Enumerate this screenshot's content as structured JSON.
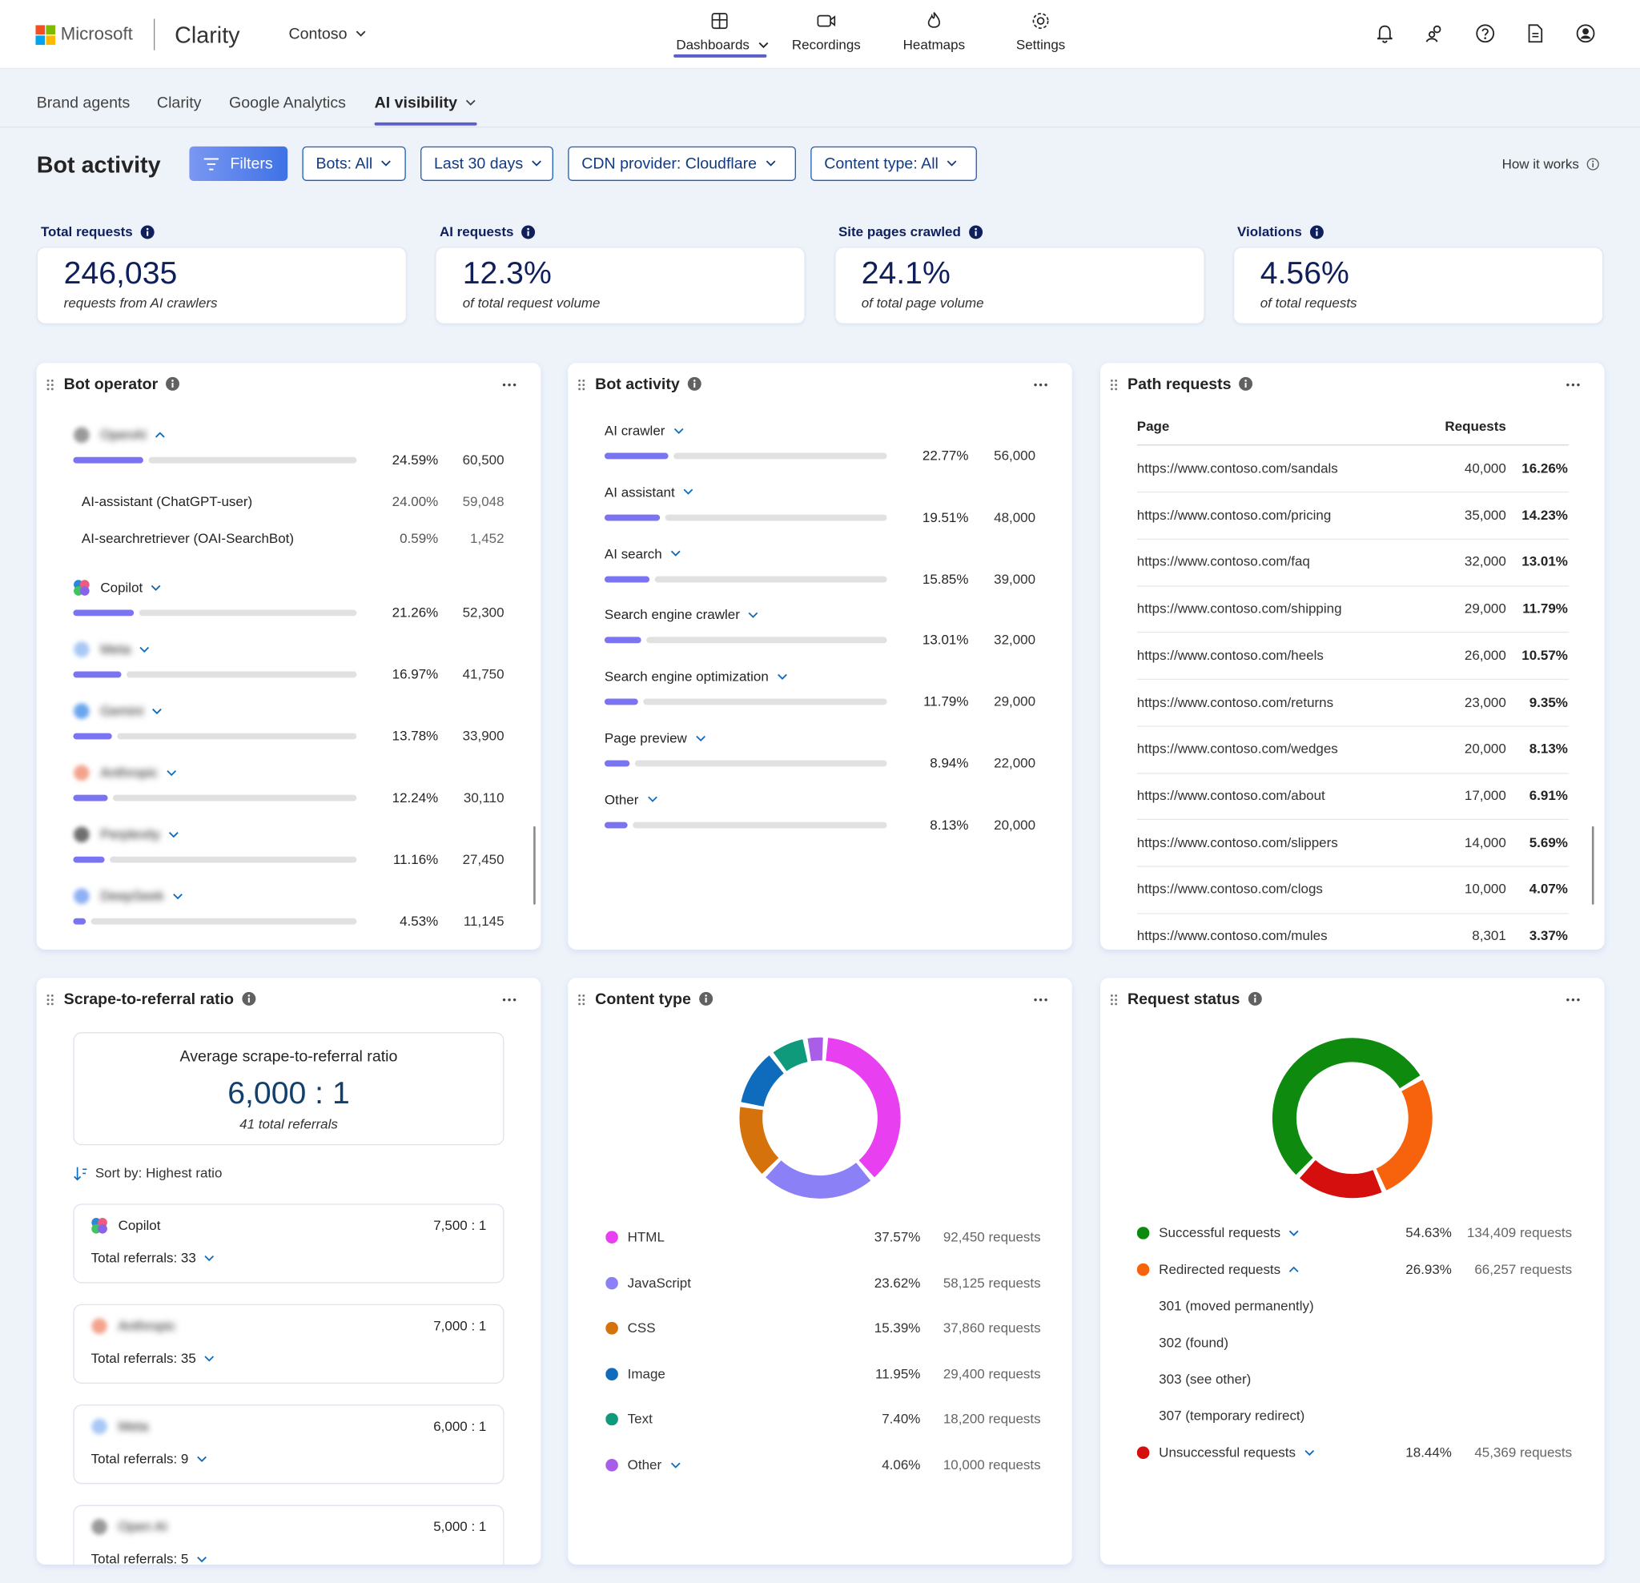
{
  "header": {
    "brand": "Microsoft",
    "product": "Clarity",
    "project": "Contoso",
    "nav": [
      "Dashboards",
      "Recordings",
      "Heatmaps",
      "Settings"
    ]
  },
  "tabs": [
    "Brand agents",
    "Clarity",
    "Google Analytics",
    "AI visibility"
  ],
  "toolbar": {
    "title": "Bot activity",
    "filters": [
      "Filters",
      "Bots: All",
      "Last 30 days",
      "CDN provider: Cloudflare",
      "Content type: All"
    ],
    "help": "How it works"
  },
  "kpis": [
    {
      "label": "Total requests",
      "value": "246,035",
      "caption": "requests from AI crawlers"
    },
    {
      "label": "AI requests",
      "value": "12.3%",
      "caption": "of total request volume"
    },
    {
      "label": "Site pages crawled",
      "value": "24.1%",
      "caption": "of total page volume"
    },
    {
      "label": "Violations",
      "value": "4.56%",
      "caption": "of total requests"
    }
  ],
  "bot_operator": {
    "title": "Bot operator",
    "rows": [
      {
        "name": "OpenAI",
        "percent": "24.59%",
        "count": "60,500",
        "children": [
          {
            "name": "AI-assistant (ChatGPT-user)",
            "percent": "24.00%",
            "count": "59,048"
          },
          {
            "name": "AI-searchretriever (OAI-SearchBot)",
            "percent": "0.59%",
            "count": "1,452"
          }
        ]
      },
      {
        "name": "Copilot",
        "percent": "21.26%",
        "count": "52,300"
      },
      {
        "name": "Meta",
        "percent": "16.97%",
        "count": "41,750"
      },
      {
        "name": "Gemini",
        "percent": "13.78%",
        "count": "33,900"
      },
      {
        "name": "Anthropic",
        "percent": "12.24%",
        "count": "30,110"
      },
      {
        "name": "Perplexity",
        "percent": "11.16%",
        "count": "27,450"
      },
      {
        "name": "DeepSeek",
        "percent": "4.53%",
        "count": "11,145"
      }
    ]
  },
  "bot_activity": {
    "title": "Bot activity",
    "rows": [
      {
        "name": "AI crawler",
        "percent": "22.77%",
        "count": "56,000"
      },
      {
        "name": "AI assistant",
        "percent": "19.51%",
        "count": "48,000"
      },
      {
        "name": "AI search",
        "percent": "15.85%",
        "count": "39,000"
      },
      {
        "name": "Search engine crawler",
        "percent": "13.01%",
        "count": "32,000"
      },
      {
        "name": "Search engine optimization",
        "percent": "11.79%",
        "count": "29,000"
      },
      {
        "name": "Page preview",
        "percent": "8.94%",
        "count": "22,000"
      },
      {
        "name": "Other",
        "percent": "8.13%",
        "count": "20,000"
      }
    ]
  },
  "path_requests": {
    "title": "Path requests",
    "columns": [
      "Page",
      "Requests"
    ],
    "rows": [
      [
        "https://www.contoso.com/sandals",
        "40,000",
        "16.26%"
      ],
      [
        "https://www.contoso.com/pricing",
        "35,000",
        "14.23%"
      ],
      [
        "https://www.contoso.com/faq",
        "32,000",
        "13.01%"
      ],
      [
        "https://www.contoso.com/shipping",
        "29,000",
        "11.79%"
      ],
      [
        "https://www.contoso.com/heels",
        "26,000",
        "10.57%"
      ],
      [
        "https://www.contoso.com/returns",
        "23,000",
        "9.35%"
      ],
      [
        "https://www.contoso.com/wedges",
        "20,000",
        "8.13%"
      ],
      [
        "https://www.contoso.com/about",
        "17,000",
        "6.91%"
      ],
      [
        "https://www.contoso.com/slippers",
        "14,000",
        "5.69%"
      ],
      [
        "https://www.contoso.com/clogs",
        "10,000",
        "4.07%"
      ],
      [
        "https://www.contoso.com/mules",
        "8,301",
        "3.37%"
      ]
    ]
  },
  "scrape_ratio": {
    "title": "Scrape-to-referral ratio",
    "summary_title": "Average scrape-to-referral ratio",
    "summary_value": "6,000 : 1",
    "summary_caption": "41 total referrals",
    "sort": "Sort by: Highest ratio",
    "rows": [
      {
        "name": "Copilot",
        "ratio": "7,500 : 1",
        "referrals": "Total referrals: 33"
      },
      {
        "name": "Anthropic",
        "ratio": "7,000 : 1",
        "referrals": "Total referrals: 35"
      },
      {
        "name": "Meta",
        "ratio": "6,000 : 1",
        "referrals": "Total referrals: 9"
      },
      {
        "name": "Open AI",
        "ratio": "5,000 : 1",
        "referrals": "Total referrals: 5"
      }
    ]
  },
  "content_type": {
    "title": "Content type",
    "rows": [
      {
        "name": "HTML",
        "color": "#e83ff0",
        "percent": "37.57%",
        "requests": "92,450 requests"
      },
      {
        "name": "JavaScript",
        "color": "#8b80f5",
        "percent": "23.62%",
        "requests": "58,125 requests"
      },
      {
        "name": "CSS",
        "color": "#d5720c",
        "percent": "15.39%",
        "requests": "37,860 requests"
      },
      {
        "name": "Image",
        "color": "#0f6cbd",
        "percent": "11.95%",
        "requests": "29,400 requests"
      },
      {
        "name": "Text",
        "color": "#0f9a7c",
        "percent": "7.40%",
        "requests": "18,200 requests"
      },
      {
        "name": "Other",
        "color": "#a95ee8",
        "percent": "4.06%",
        "requests": "10,000 requests"
      }
    ]
  },
  "request_status": {
    "title": "Request status",
    "rows": [
      {
        "name": "Successful requests",
        "color": "#0e8a0e",
        "percent": "54.63%",
        "requests": "134,409 requests"
      },
      {
        "name": "Redirected requests",
        "color": "#f7630c",
        "percent": "26.93%",
        "requests": "66,257 requests",
        "children": [
          "301 (moved permanently)",
          "302 (found)",
          "303 (see other)",
          "307 (temporary redirect)"
        ]
      },
      {
        "name": "Unsuccessful requests",
        "color": "#d50e0e",
        "percent": "18.44%",
        "requests": "45,369 requests"
      }
    ]
  }
}
